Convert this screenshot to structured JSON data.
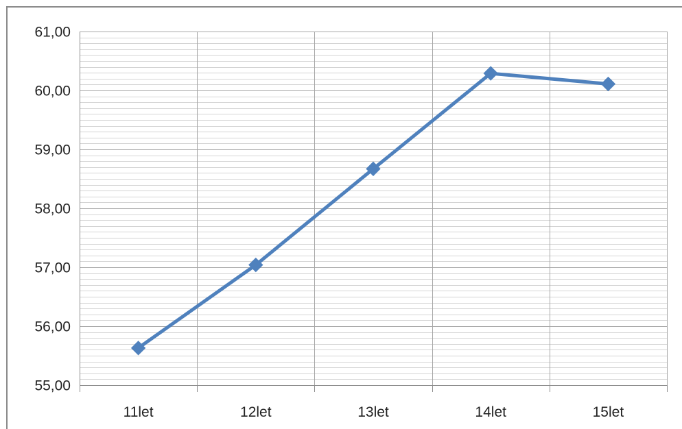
{
  "chart_data": {
    "type": "line",
    "categories": [
      "11let",
      "12let",
      "13let",
      "14let",
      "15let"
    ],
    "series": [
      {
        "values": [
          55.63,
          57.04,
          58.67,
          60.29,
          60.11
        ],
        "color": "#4f81bd",
        "marker": "diamond"
      }
    ],
    "ylim": [
      55,
      61
    ],
    "yticks": [
      "55,00",
      "56,00",
      "57,00",
      "58,00",
      "59,00",
      "60,00",
      "61,00"
    ],
    "y_minor_step": 0.1,
    "grid": true,
    "legend": "none"
  }
}
